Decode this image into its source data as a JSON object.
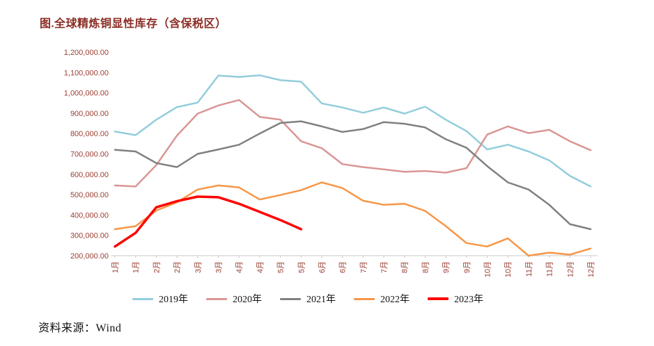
{
  "page": {
    "title": "图.全球精炼铜显性库存（含保税区）",
    "source": "资料来源：Wind",
    "title_color": "#8B2C24",
    "axis_label_color": "#9B3D32"
  },
  "chart_data": {
    "type": "line",
    "title": "图.全球精炼铜显性库存（含保税区）",
    "grid": false,
    "legend_position": "bottom",
    "x_axis": {
      "label_rotation": -90,
      "categories": [
        "1月",
        "1月",
        "2月",
        "2月",
        "3月",
        "3月",
        "4月",
        "4月",
        "5月",
        "5月",
        "6月",
        "6月",
        "7月",
        "7月",
        "8月",
        "8月",
        "9月",
        "9月",
        "10月",
        "10月",
        "11月",
        "11月",
        "12月",
        "12月"
      ]
    },
    "y_axis": {
      "min": 200000,
      "max": 1200000,
      "step": 100000,
      "tick_format": "#,##0.00"
    },
    "series": [
      {
        "name": "2019年",
        "color": "#92CDDC",
        "width": 2.5,
        "values": [
          810000,
          792000,
          868000,
          930000,
          952000,
          1085000,
          1078000,
          1086000,
          1062000,
          1055000,
          948000,
          928000,
          902000,
          928000,
          898000,
          932000,
          868000,
          812000,
          722000,
          745000,
          712000,
          668000,
          592000,
          540000
        ]
      },
      {
        "name": "2020年",
        "color": "#D99694",
        "width": 2.5,
        "values": [
          545000,
          540000,
          645000,
          790000,
          898000,
          938000,
          965000,
          882000,
          868000,
          762000,
          728000,
          650000,
          635000,
          624000,
          612000,
          616000,
          608000,
          630000,
          795000,
          835000,
          802000,
          818000,
          762000,
          718000
        ]
      },
      {
        "name": "2021年",
        "color": "#808080",
        "width": 2.5,
        "values": [
          720000,
          712000,
          655000,
          635000,
          700000,
          722000,
          745000,
          800000,
          852000,
          860000,
          835000,
          808000,
          822000,
          856000,
          848000,
          830000,
          772000,
          730000,
          640000,
          560000,
          525000,
          450000,
          355000,
          330000
        ]
      },
      {
        "name": "2022年",
        "color": "#F79646",
        "width": 2.5,
        "values": [
          330000,
          345000,
          422000,
          462000,
          525000,
          545000,
          535000,
          476000,
          498000,
          522000,
          560000,
          532000,
          470000,
          450000,
          455000,
          420000,
          345000,
          262000,
          245000,
          285000,
          200000,
          215000,
          205000,
          235000
        ]
      },
      {
        "name": "2023年",
        "color": "#FF0000",
        "width": 3.5,
        "values": [
          245000,
          312000,
          438000,
          468000,
          490000,
          487000,
          455000,
          415000,
          375000,
          330000
        ]
      }
    ]
  }
}
